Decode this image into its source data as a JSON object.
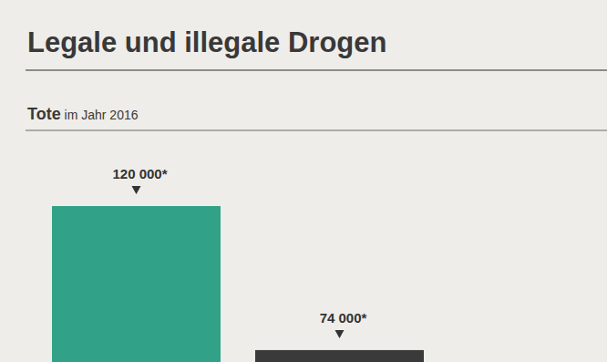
{
  "chart_data": {
    "type": "bar",
    "title": "Legale und illegale Drogen",
    "subtitle": "Tote im Jahr 2016",
    "categories": [
      null,
      null
    ],
    "values": [
      120000,
      74000
    ],
    "value_labels": [
      "120 000*",
      "74 000*"
    ],
    "colors": [
      "#31a287",
      "#3a3a3a"
    ],
    "ylim": [
      0,
      120000
    ],
    "yticks": [],
    "data_labels": true,
    "tick_labels": false,
    "grid": false
  }
}
